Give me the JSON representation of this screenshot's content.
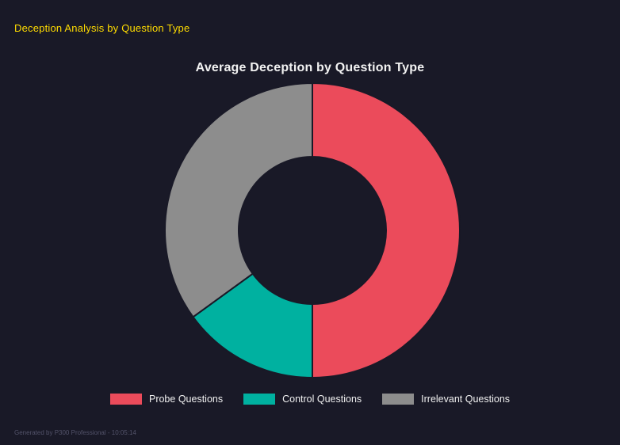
{
  "theme": {
    "background": "#191927",
    "header_color": "#ffdc00",
    "title_color": "#f2f2f2",
    "legend_text_color": "#f0f0f0",
    "footer_color": "#53536a"
  },
  "header": {
    "title": "Deception Analysis by Question Type"
  },
  "footer": {
    "text": "Generated by P300 Professional - 10:05:14"
  },
  "chart_data": {
    "type": "pie",
    "variant": "donut",
    "title": "Average Deception by Question Type",
    "categories": [
      "Probe Questions",
      "Control Questions",
      "Irrelevant Questions"
    ],
    "values": [
      50,
      15,
      35
    ],
    "unit": "percent_of_total",
    "colors": [
      "#eb4b5b",
      "#00b1a0",
      "#8d8d8d"
    ],
    "start_angle_deg": 0,
    "direction": "clockwise",
    "inner_radius_ratio": 0.5,
    "legend_position": "bottom",
    "legend_entries": [
      "Probe Questions",
      "Control Questions",
      "Irrelevant Questions"
    ]
  }
}
